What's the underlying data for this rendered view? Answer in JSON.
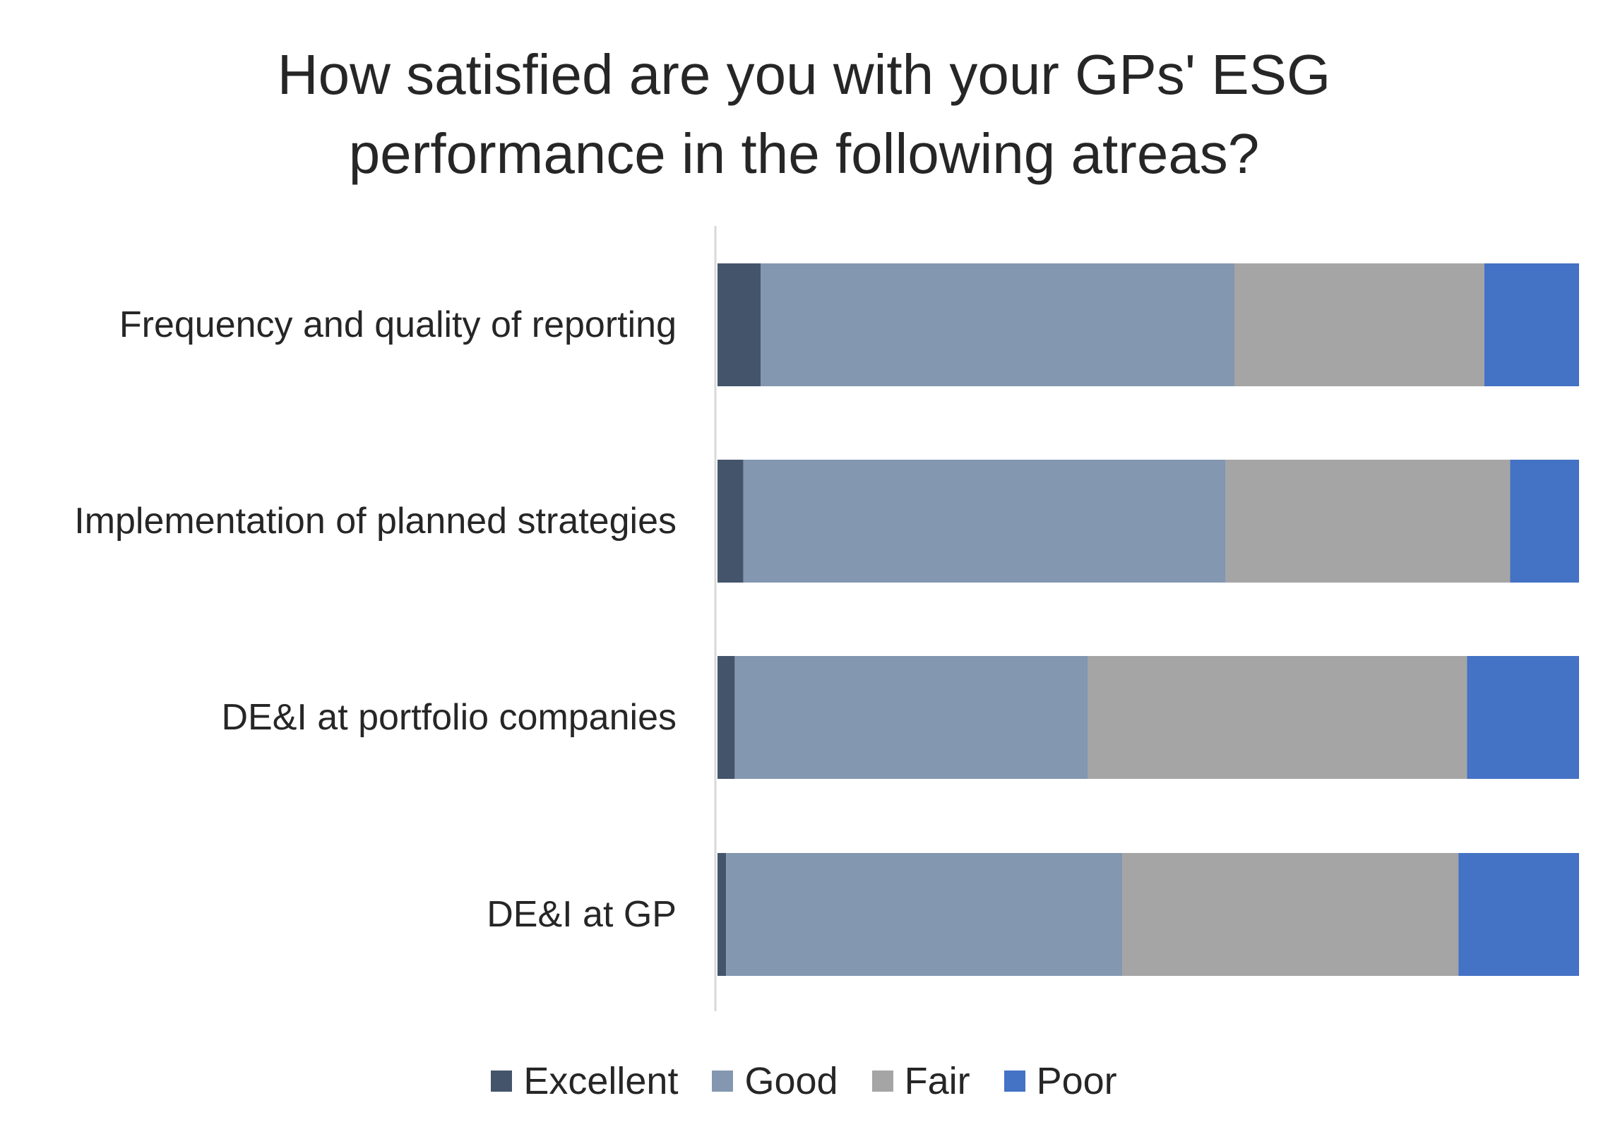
{
  "chart_data": {
    "type": "bar",
    "orientation": "horizontal",
    "stacked": "percent",
    "title_lines": [
      "How satisfied are you with your GPs' ESG",
      "performance in the following atreas?"
    ],
    "categories": [
      "Frequency and quality of reporting",
      "Implementation of planned strategies",
      "DE&I at portfolio companies",
      "DE&I at GP"
    ],
    "series": [
      {
        "name": "Excellent",
        "color": "#44546a",
        "values": [
          5,
          3,
          2,
          1
        ]
      },
      {
        "name": "Good",
        "color": "#8497b0",
        "values": [
          55,
          56,
          41,
          46
        ]
      },
      {
        "name": "Fair",
        "color": "#a5a5a5",
        "values": [
          29,
          33,
          44,
          39
        ]
      },
      {
        "name": "Poor",
        "color": "#4472c4",
        "values": [
          11,
          8,
          13,
          14
        ]
      }
    ],
    "xlim": [
      0,
      100
    ],
    "grid": false,
    "legend_position": "bottom"
  }
}
